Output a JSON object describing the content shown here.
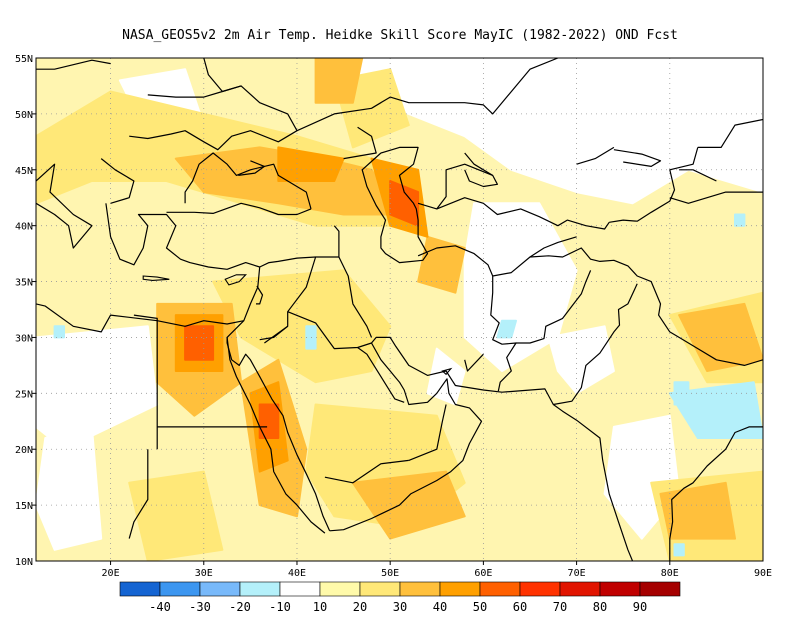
{
  "title": "NASA_GEOS5v2  2m Air Temp. Heidke Skill Score MayIC (1982-2022) OND Fcst",
  "map": {
    "lon_range": [
      12,
      90
    ],
    "lat_range": [
      10,
      55
    ],
    "lon_ticks": [
      {
        "value": 20,
        "label": "20E"
      },
      {
        "value": 30,
        "label": "30E"
      },
      {
        "value": 40,
        "label": "40E"
      },
      {
        "value": 50,
        "label": "50E"
      },
      {
        "value": 60,
        "label": "60E"
      },
      {
        "value": 70,
        "label": "70E"
      },
      {
        "value": 80,
        "label": "80E"
      },
      {
        "value": 90,
        "label": "90E"
      }
    ],
    "lat_ticks": [
      {
        "value": 10,
        "label": "10N"
      },
      {
        "value": 15,
        "label": "15N"
      },
      {
        "value": 20,
        "label": "20N"
      },
      {
        "value": 25,
        "label": "25N"
      },
      {
        "value": 30,
        "label": "30N"
      },
      {
        "value": 35,
        "label": "35N"
      },
      {
        "value": 40,
        "label": "40N"
      },
      {
        "value": 45,
        "label": "45N"
      },
      {
        "value": 50,
        "label": "50N"
      },
      {
        "value": 55,
        "label": "55N"
      }
    ],
    "grid": "dotted"
  },
  "colorbar": {
    "bins": [
      {
        "color": "#1464d2"
      },
      {
        "color": "#3c96f0"
      },
      {
        "color": "#78b9fa"
      },
      {
        "color": "#b4f0fa"
      },
      {
        "color": "#ffffff"
      },
      {
        "color": "#fffaaa"
      },
      {
        "color": "#ffe878"
      },
      {
        "color": "#ffc03c"
      },
      {
        "color": "#ffa000"
      },
      {
        "color": "#ff6000"
      },
      {
        "color": "#ff3200"
      },
      {
        "color": "#e11400"
      },
      {
        "color": "#c00000"
      },
      {
        "color": "#a50000"
      }
    ],
    "labels": [
      "-40",
      "-30",
      "-20",
      "-10",
      "10",
      "20",
      "30",
      "40",
      "50",
      "60",
      "70",
      "80",
      "90"
    ]
  }
}
